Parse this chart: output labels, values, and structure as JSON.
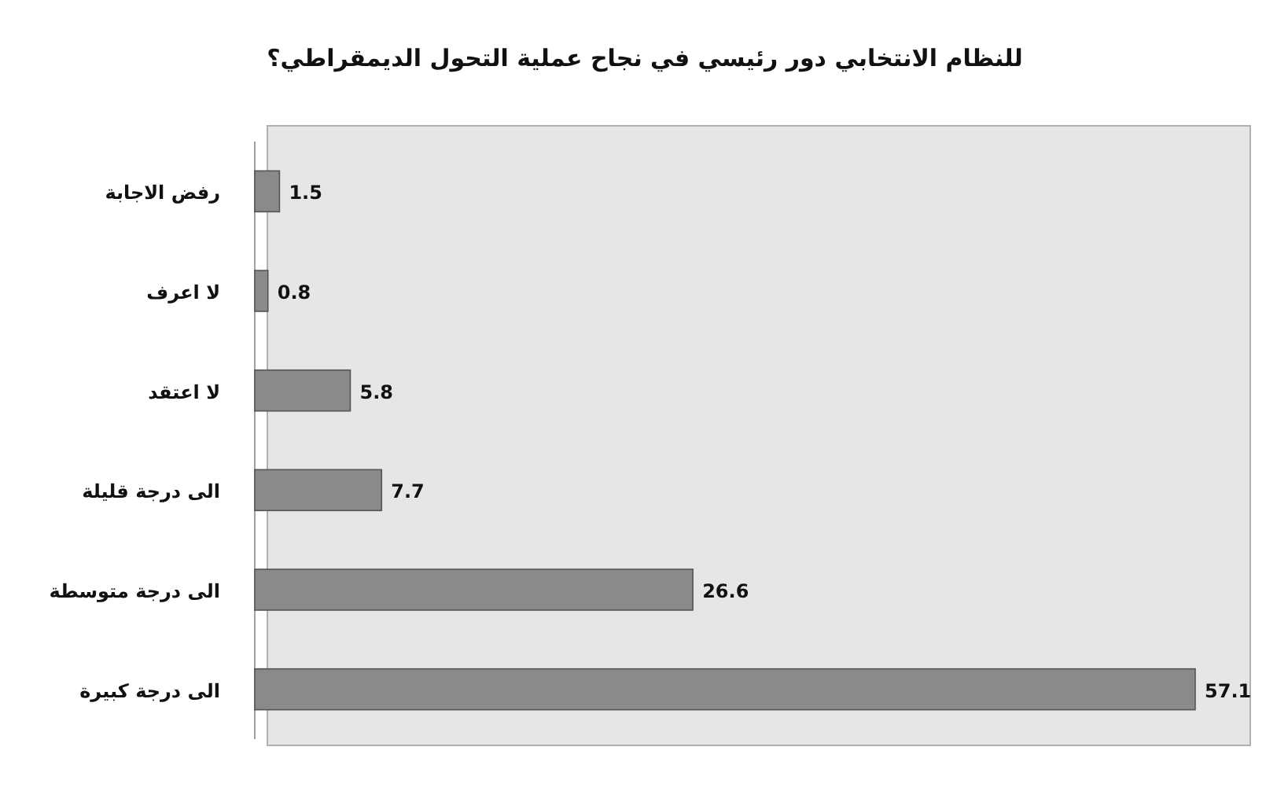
{
  "chart_data": {
    "type": "bar",
    "orientation": "horizontal",
    "title": "للنظام الانتخابي دور رئيسي في نجاح عملية التحول الديمقراطي؟",
    "categories": [
      "رفض الاجابة",
      "لا اعرف",
      "لا اعتقد",
      "الى درجة قليلة",
      "الى درجة متوسطة",
      "الى درجة كبيرة"
    ],
    "values": [
      1.5,
      0.8,
      5.8,
      7.7,
      26.6,
      57.1
    ],
    "color": "#8a8a8a",
    "data_labels": true
  }
}
